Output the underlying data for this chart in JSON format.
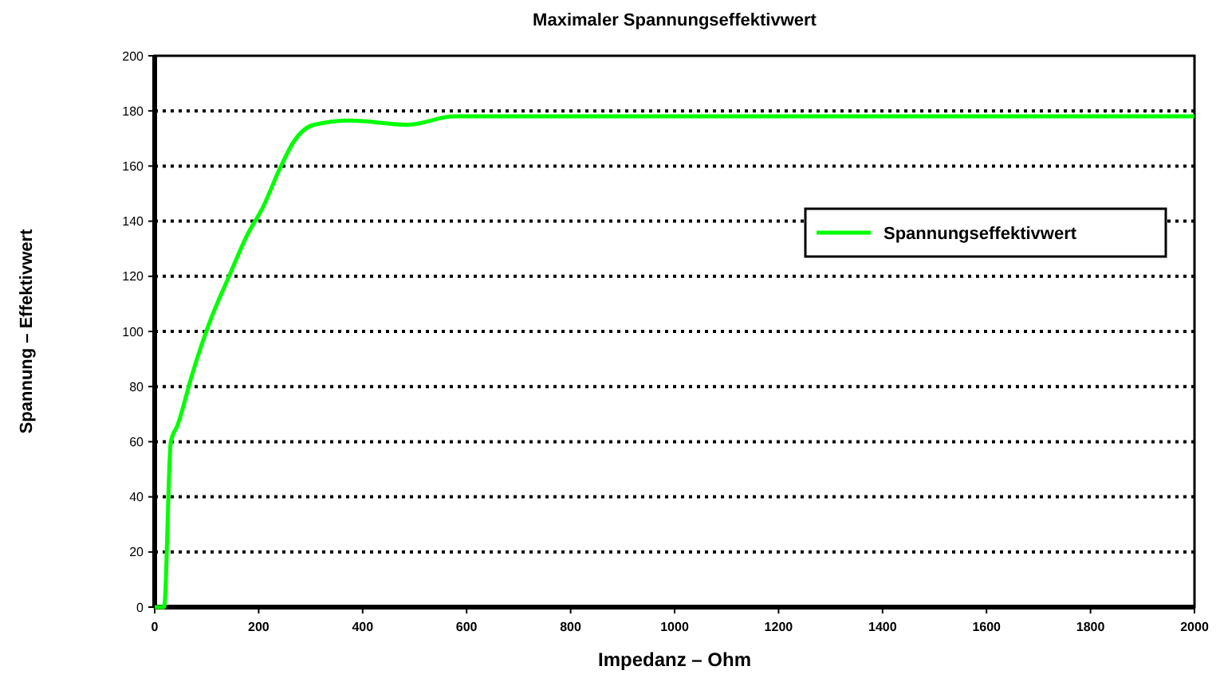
{
  "chart_data": {
    "type": "line",
    "title": "Maximaler Spannungseffektivwert",
    "xlabel": "Impedanz – Ohm",
    "ylabel": "Spannung – Effektivwert",
    "xlim": [
      0,
      2000
    ],
    "xticks": [
      0,
      200,
      400,
      600,
      800,
      1000,
      1200,
      1400,
      1600,
      1800,
      2000
    ],
    "ylim": [
      0,
      200
    ],
    "yticks": [
      0,
      20,
      40,
      60,
      80,
      100,
      120,
      140,
      160,
      180,
      200
    ],
    "grid": "y",
    "legend": "right",
    "line_style": "solid",
    "marker": "none",
    "series": [
      {
        "name": "Spannungseffektivwert",
        "color": "#00ff00",
        "x": [
          0,
          18,
          31,
          44,
          73,
          103,
          143,
          178,
          208,
          243,
          268,
          307,
          377,
          487,
          576,
          800,
          1200,
          1600,
          2000
        ],
        "values": [
          0,
          0,
          60,
          66,
          85,
          102,
          120,
          135,
          145,
          160,
          169,
          175,
          176.5,
          175,
          178,
          178,
          178,
          178,
          178
        ]
      }
    ]
  }
}
